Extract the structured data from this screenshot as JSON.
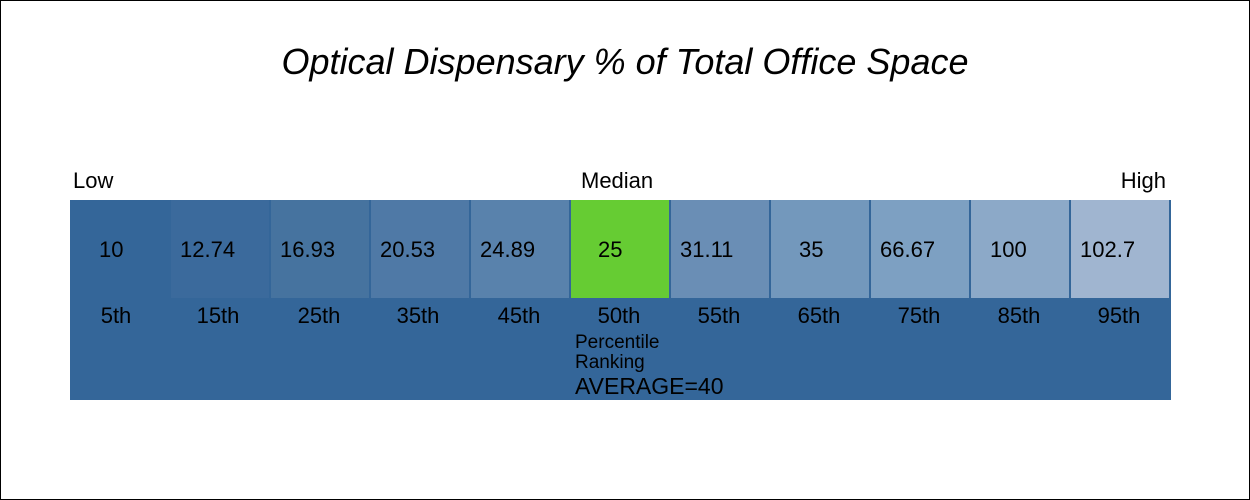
{
  "chart_data": {
    "type": "table",
    "title": "Optical Dispensary % of Total Office Space",
    "labels": {
      "low": "Low",
      "median": "Median",
      "high": "High"
    },
    "percentiles": [
      "5th",
      "15th",
      "25th",
      "35th",
      "45th",
      "50th",
      "55th",
      "65th",
      "75th",
      "85th",
      "95th"
    ],
    "values": [
      "10",
      "12.74",
      "16.93",
      "20.53",
      "24.89",
      "25",
      "31.11",
      "35",
      "66.67",
      "100",
      "102.7"
    ],
    "highlight_index": 5,
    "caption_line1": "Percentile",
    "caption_line2": "Ranking",
    "average_label": "AVERAGE=40",
    "colors": {
      "band": "#346699",
      "highlight": "#66cc33",
      "cells": [
        "#346699",
        "#3b6a9c",
        "#46739f",
        "#4f79a6",
        "#5982ac",
        "#66cc33",
        "#6a8eb5",
        "#7398bc",
        "#7da0c2",
        "#8ca9c8",
        "#a0b5d0"
      ]
    }
  }
}
